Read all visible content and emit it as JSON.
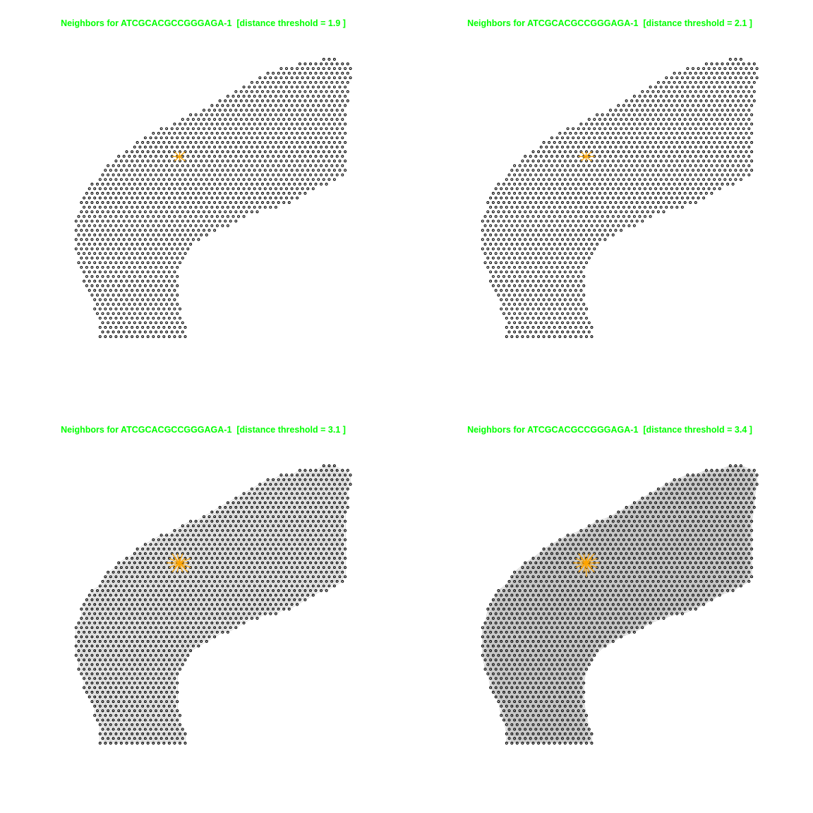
{
  "colors": {
    "title": "#00ff00",
    "spot_stroke": "#000000",
    "edge": "#c4c4c4",
    "highlight": "#ffa500"
  },
  "panels": [
    {
      "title": "Neighbors for ATCGCACGCCGGGAGA-1  [distance threshold = 1.9 ]"
    },
    {
      "title": "Neighbors for ATCGCACGCCGGGAGA-1  [distance threshold = 2.1 ]"
    },
    {
      "title": "Neighbors for ATCGCACGCCGGGAGA-1  [distance threshold = 3.1 ]"
    },
    {
      "title": "Neighbors for ATCGCACGCCGGGAGA-1  [distance threshold = 3.4 ]"
    }
  ],
  "chart_data": [
    {
      "type": "scatter",
      "subtype": "spatial-neighbor-graph",
      "title": "Neighbors for ATCGCACGCCGGGAGA-1  [distance threshold = 1.9 ]",
      "focus_spot": "ATCGCACGCCGGGAGA-1",
      "distance_threshold": 1.9,
      "grid": false,
      "legend": "none"
    },
    {
      "type": "scatter",
      "subtype": "spatial-neighbor-graph",
      "title": "Neighbors for ATCGCACGCCGGGAGA-1  [distance threshold = 2.1 ]",
      "focus_spot": "ATCGCACGCCGGGAGA-1",
      "distance_threshold": 2.1,
      "grid": false,
      "legend": "none"
    },
    {
      "type": "scatter",
      "subtype": "spatial-neighbor-graph",
      "title": "Neighbors for ATCGCACGCCGGGAGA-1  [distance threshold = 3.1 ]",
      "focus_spot": "ATCGCACGCCGGGAGA-1",
      "distance_threshold": 3.1,
      "grid": false,
      "legend": "none"
    },
    {
      "type": "scatter",
      "subtype": "spatial-neighbor-graph",
      "title": "Neighbors for ATCGCACGCCGGGAGA-1  [distance threshold = 3.4 ]",
      "focus_spot": "ATCGCACGCCGGGAGA-1",
      "distance_threshold": 3.4,
      "grid": false,
      "legend": "none"
    }
  ]
}
